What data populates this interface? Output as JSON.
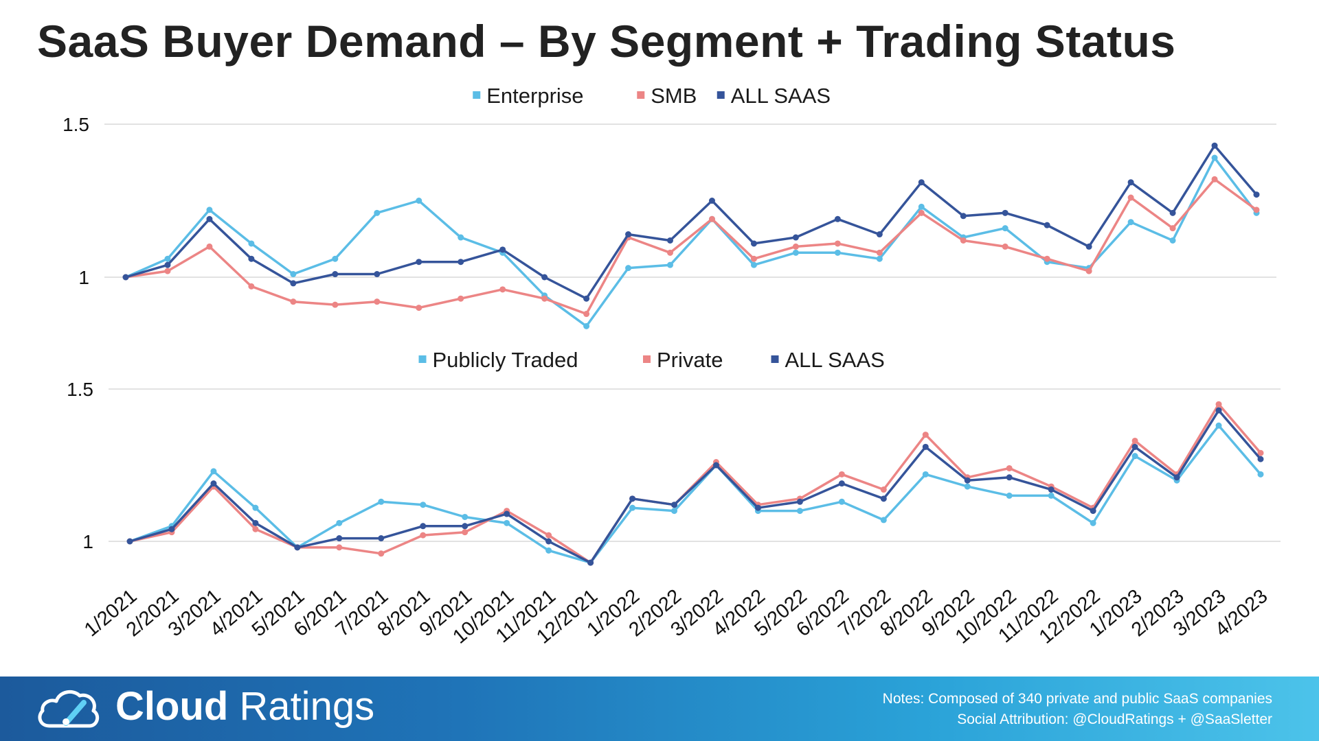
{
  "title": "SaaS Buyer Demand – By Segment + Trading Status",
  "chart_data": [
    {
      "type": "line",
      "categories": [
        "1/2021",
        "2/2021",
        "3/2021",
        "4/2021",
        "5/2021",
        "6/2021",
        "7/2021",
        "8/2021",
        "9/2021",
        "10/2021",
        "11/2021",
        "12/2021",
        "1/2022",
        "2/2022",
        "3/2022",
        "4/2022",
        "5/2022",
        "6/2022",
        "7/2022",
        "8/2022",
        "9/2022",
        "10/2022",
        "11/2022",
        "12/2022",
        "1/2023",
        "2/2023",
        "3/2023",
        "4/2023"
      ],
      "yticks": [
        "1",
        "1.5"
      ],
      "ylim": [
        0.84,
        1.5
      ],
      "legend_position": "top",
      "grid": true,
      "series": [
        {
          "name": "Enterprise",
          "color": "#5bbde6",
          "values": [
            1.0,
            1.06,
            1.22,
            1.11,
            1.01,
            1.06,
            1.21,
            1.25,
            1.13,
            1.08,
            0.94,
            0.84,
            1.03,
            1.04,
            1.19,
            1.04,
            1.08,
            1.08,
            1.06,
            1.23,
            1.13,
            1.16,
            1.05,
            1.03,
            1.18,
            1.12,
            1.39,
            1.21
          ]
        },
        {
          "name": "SMB",
          "color": "#ec8585",
          "values": [
            1.0,
            1.02,
            1.1,
            0.97,
            0.92,
            0.91,
            0.92,
            0.9,
            0.93,
            0.96,
            0.93,
            0.88,
            1.13,
            1.08,
            1.19,
            1.06,
            1.1,
            1.11,
            1.08,
            1.21,
            1.12,
            1.1,
            1.06,
            1.02,
            1.26,
            1.16,
            1.32,
            1.22
          ]
        },
        {
          "name": "ALL SAAS",
          "color": "#35549a",
          "values": [
            1.0,
            1.04,
            1.19,
            1.06,
            0.98,
            1.01,
            1.01,
            1.05,
            1.05,
            1.09,
            1.0,
            0.93,
            1.14,
            1.12,
            1.25,
            1.11,
            1.13,
            1.19,
            1.14,
            1.31,
            1.2,
            1.21,
            1.17,
            1.1,
            1.31,
            1.21,
            1.43,
            1.27
          ]
        }
      ]
    },
    {
      "type": "line",
      "categories": [
        "1/2021",
        "2/2021",
        "3/2021",
        "4/2021",
        "5/2021",
        "6/2021",
        "7/2021",
        "8/2021",
        "9/2021",
        "10/2021",
        "11/2021",
        "12/2021",
        "1/2022",
        "2/2022",
        "3/2022",
        "4/2022",
        "5/2022",
        "6/2022",
        "7/2022",
        "8/2022",
        "9/2022",
        "10/2022",
        "11/2022",
        "12/2022",
        "1/2023",
        "2/2023",
        "3/2023",
        "4/2023"
      ],
      "yticks": [
        "1",
        "1.5"
      ],
      "ylim": [
        0.84,
        1.5
      ],
      "legend_position": "top",
      "grid": true,
      "series": [
        {
          "name": "Publicly Traded",
          "color": "#5bbde6",
          "values": [
            1.0,
            1.05,
            1.23,
            1.11,
            0.98,
            1.06,
            1.13,
            1.12,
            1.08,
            1.06,
            0.97,
            0.93,
            1.11,
            1.1,
            1.25,
            1.1,
            1.1,
            1.13,
            1.07,
            1.22,
            1.18,
            1.15,
            1.15,
            1.06,
            1.28,
            1.2,
            1.38,
            1.22
          ]
        },
        {
          "name": "Private",
          "color": "#ec8585",
          "values": [
            1.0,
            1.03,
            1.18,
            1.04,
            0.98,
            0.98,
            0.96,
            1.02,
            1.03,
            1.1,
            1.02,
            0.93,
            1.14,
            1.12,
            1.26,
            1.12,
            1.14,
            1.22,
            1.17,
            1.35,
            1.21,
            1.24,
            1.18,
            1.11,
            1.33,
            1.22,
            1.45,
            1.29
          ]
        },
        {
          "name": "ALL SAAS",
          "color": "#35549a",
          "values": [
            1.0,
            1.04,
            1.19,
            1.06,
            0.98,
            1.01,
            1.01,
            1.05,
            1.05,
            1.09,
            1.0,
            0.93,
            1.14,
            1.12,
            1.25,
            1.11,
            1.13,
            1.19,
            1.14,
            1.31,
            1.2,
            1.21,
            1.17,
            1.1,
            1.31,
            1.21,
            1.43,
            1.27
          ]
        }
      ]
    }
  ],
  "footer": {
    "logo_bold": "Cloud",
    "logo_light": "Ratings",
    "notes_line1": "Notes: Composed of 340 private and public SaaS companies",
    "notes_line2": "Social Attribution: @CloudRatings + @SaaSletter"
  }
}
